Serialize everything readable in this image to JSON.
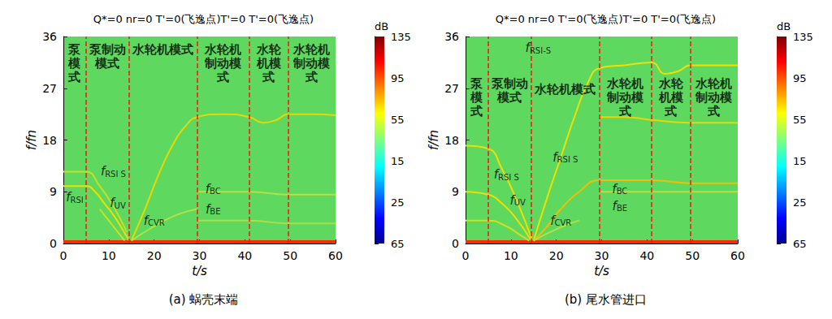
{
  "chart_data": [
    {
      "type": "line",
      "title": "Q*=0 nr=0 T'=0(飞逸点)T'=0 T'=0(飞逸点)",
      "subtitle": "(a) 蜗壳末端",
      "x_label": "t/s",
      "y_label": "f/fn",
      "xlim": [
        0,
        60
      ],
      "xticks": [
        0,
        10,
        20,
        30,
        40,
        50,
        60
      ],
      "ylim": [
        0,
        36
      ],
      "yticks": [
        0,
        9,
        18,
        27,
        36
      ],
      "grid": false,
      "series": [
        {
          "color": "#ff2a00",
          "line_style": "solid",
          "x": [
            0,
            60
          ],
          "values": [
            0.3,
            0.3
          ]
        },
        {
          "color": "#f0e000",
          "line_style": "solid",
          "x": [
            0,
            5,
            7,
            9,
            11,
            13,
            14.5
          ],
          "values": [
            10,
            10,
            9,
            7,
            5,
            2.5,
            0.5
          ]
        },
        {
          "color": "#c8e020",
          "line_style": "solid",
          "x": [
            0,
            5,
            8,
            11,
            14
          ],
          "values": [
            12.5,
            12.5,
            10,
            6.5,
            2
          ]
        },
        {
          "color": "#d0e020",
          "line_style": "solid",
          "x": [
            8,
            10,
            12,
            13.5
          ],
          "values": [
            6,
            4,
            2,
            0.5
          ]
        },
        {
          "color": "#e8d800",
          "line_style": "solid",
          "x": [
            15,
            18,
            21,
            24,
            27,
            29.5,
            35,
            41,
            44,
            47,
            49.5,
            55,
            60
          ],
          "values": [
            0.5,
            6,
            12,
            17,
            20.5,
            22,
            22.5,
            22,
            21,
            21.5,
            22.5,
            22.5,
            22.3
          ]
        },
        {
          "color": "#b8e040",
          "line_style": "solid",
          "x": [
            15,
            20,
            25,
            29.5
          ],
          "values": [
            0.5,
            3,
            5,
            6
          ]
        },
        {
          "color": "#b8e040",
          "line_style": "solid",
          "x": [
            29.5,
            41,
            49.5,
            60
          ],
          "values": [
            9,
            9,
            8.5,
            8.5
          ]
        },
        {
          "color": "#a8e048",
          "line_style": "solid",
          "x": [
            29.5,
            41,
            49.5,
            60
          ],
          "values": [
            4,
            4,
            3.5,
            3.5
          ]
        }
      ],
      "boundaries": {
        "values": [
          5,
          14.5,
          29.5,
          41,
          49.5
        ],
        "color": "#ff1010",
        "line_style": "dashed"
      },
      "modes": [
        {
          "label": "泵模式",
          "start": 0,
          "end": 5,
          "y": 35
        },
        {
          "label": "泵制动模式",
          "start": 5,
          "end": 14.5,
          "y": 35
        },
        {
          "label": "水轮机模式",
          "start": 14.5,
          "end": 29.5,
          "y": 35
        },
        {
          "label": "水轮机制动模式",
          "start": 29.5,
          "end": 41,
          "y": 35
        },
        {
          "label": "水轮机模式",
          "start": 41,
          "end": 49.5,
          "y": 35
        },
        {
          "label": "水轮机制动模式",
          "start": 49.5,
          "end": 60,
          "y": 35
        }
      ],
      "annotations": [
        {
          "label": "f",
          "sub": "RSI",
          "x": 2.5,
          "y": 8
        },
        {
          "label": "f",
          "sub": "RSI S",
          "x": 11,
          "y": 12.5
        },
        {
          "label": "f",
          "sub": "UV",
          "x": 12,
          "y": 7
        },
        {
          "label": "f",
          "sub": "CVR",
          "x": 20,
          "y": 4
        },
        {
          "label": "f",
          "sub": "BC",
          "x": 33,
          "y": 9.5
        },
        {
          "label": "f",
          "sub": "BE",
          "x": 33,
          "y": 6
        }
      ],
      "colorbar": {
        "label": "dB",
        "range": [
          -65,
          135
        ],
        "ticks": [
          135,
          95,
          55,
          15,
          {
            "value": -25,
            "label": "25"
          },
          {
            "value": -65,
            "label": "65"
          }
        ]
      }
    },
    {
      "type": "line",
      "title": "Q*=0 nr=0 T'=0(飞逸点)T'=0 T'=0(飞逸点)",
      "subtitle": "(b) 尾水管进口",
      "x_label": "t/s",
      "y_label": "f/fn",
      "xlim": [
        0,
        60
      ],
      "xticks": [
        0,
        10,
        20,
        30,
        40,
        50,
        60
      ],
      "ylim": [
        0,
        36
      ],
      "yticks": [
        0,
        9,
        18,
        27,
        36
      ],
      "grid": false,
      "series": [
        {
          "color": "#ff2a00",
          "line_style": "solid",
          "x": [
            0,
            60
          ],
          "values": [
            0.3,
            0.3
          ]
        },
        {
          "color": "#f0e000",
          "line_style": "solid",
          "x": [
            0,
            5,
            8,
            11,
            14.5
          ],
          "values": [
            17,
            16.5,
            13,
            8,
            1
          ]
        },
        {
          "color": "#f0e000",
          "line_style": "solid",
          "x": [
            0,
            5,
            8,
            11,
            14.5
          ],
          "values": [
            9,
            8.5,
            7,
            4.5,
            0.5
          ]
        },
        {
          "color": "#d0e020",
          "line_style": "solid",
          "x": [
            0,
            5,
            9,
            12,
            14
          ],
          "values": [
            4,
            4,
            3,
            1.5,
            0.5
          ]
        },
        {
          "color": "#f0e000",
          "line_style": "solid",
          "x": [
            15,
            18,
            21,
            24,
            27,
            29.5,
            35,
            41,
            44,
            47,
            49.5,
            55,
            60
          ],
          "values": [
            0.5,
            8,
            15,
            22,
            28,
            30.5,
            31,
            31.5,
            29.5,
            30,
            31,
            31,
            31
          ]
        },
        {
          "color": "#f0c000",
          "line_style": "solid",
          "x": [
            15,
            18,
            21,
            25,
            29.5,
            41,
            49.5,
            60
          ],
          "values": [
            0.5,
            3,
            6,
            9,
            11,
            11,
            10.5,
            10.5
          ]
        },
        {
          "color": "#e8d800",
          "line_style": "solid",
          "x": [
            29.5,
            35,
            41,
            49.5,
            60
          ],
          "values": [
            22,
            22,
            21.5,
            21,
            21
          ]
        },
        {
          "color": "#b8e040",
          "line_style": "solid",
          "x": [
            29.5,
            60
          ],
          "values": [
            9,
            9
          ]
        },
        {
          "color": "#b8e040",
          "line_style": "solid",
          "x": [
            15,
            20,
            25
          ],
          "values": [
            0.5,
            2.5,
            4
          ]
        }
      ],
      "boundaries": {
        "values": [
          5,
          14.5,
          29.5,
          41,
          49.5
        ],
        "color": "#ff1010",
        "line_style": "dashed"
      },
      "modes": [
        {
          "label": "泵模式",
          "start": 0,
          "end": 5,
          "y": 29
        },
        {
          "label": "泵制动模式",
          "start": 5,
          "end": 14.5,
          "y": 29
        },
        {
          "label": "水轮机模式",
          "start": 14.5,
          "end": 29.5,
          "y": 28
        },
        {
          "label": "水轮机制动模式",
          "start": 29.5,
          "end": 41,
          "y": 29
        },
        {
          "label": "水轮机模式",
          "start": 41,
          "end": 49.5,
          "y": 29
        },
        {
          "label": "水轮机制动模式",
          "start": 49.5,
          "end": 60,
          "y": 29
        }
      ],
      "annotations": [
        {
          "label": "f",
          "sub": "RSI-S",
          "x": 16,
          "y": 34
        },
        {
          "label": "f",
          "sub": "RSI S",
          "x": 9,
          "y": 12
        },
        {
          "label": "f",
          "sub": "UV",
          "x": 11.5,
          "y": 7.5
        },
        {
          "label": "f",
          "sub": "RSI S",
          "x": 22,
          "y": 15
        },
        {
          "label": "f",
          "sub": "CVR",
          "x": 21,
          "y": 4
        },
        {
          "label": "f",
          "sub": "BC",
          "x": 34,
          "y": 9.5
        },
        {
          "label": "f",
          "sub": "BE",
          "x": 34,
          "y": 6.5
        }
      ],
      "colorbar": {
        "label": "dB",
        "range": [
          -65,
          135
        ],
        "ticks": [
          135,
          95,
          55,
          15,
          {
            "value": -25,
            "label": "25"
          },
          {
            "value": -65,
            "label": "65"
          }
        ]
      }
    }
  ]
}
